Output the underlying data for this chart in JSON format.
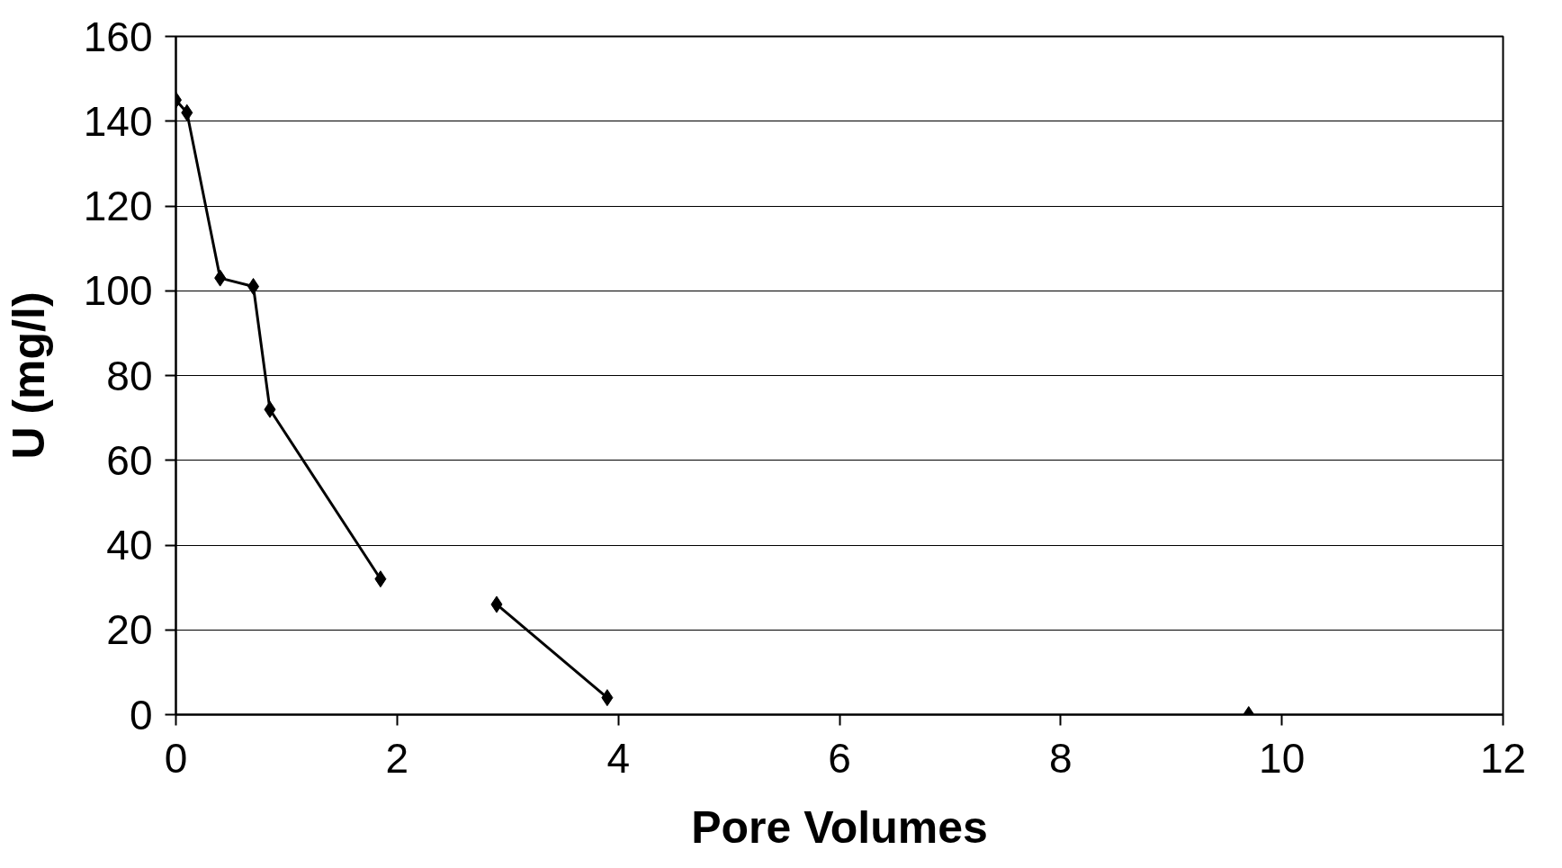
{
  "chart_data": {
    "type": "line",
    "xlabel": "Pore Volumes",
    "ylabel": "U (mg/l)",
    "series": [
      {
        "color": "#000000",
        "x": [
          0,
          0.1,
          0.4,
          0.7,
          0.85,
          1.85
        ],
        "values": [
          145,
          142,
          103,
          101,
          72,
          32
        ]
      },
      {
        "color": "#000000",
        "x": [
          2.9,
          3.9
        ],
        "values": [
          26,
          4
        ]
      },
      {
        "color": "#000000",
        "x": [
          9.7
        ],
        "values": [
          0
        ]
      }
    ],
    "xlim": [
      0,
      12
    ],
    "xticks": [
      0,
      2,
      4,
      6,
      8,
      10,
      12
    ],
    "ylim": [
      0,
      160
    ],
    "yticks": [
      0,
      20,
      40,
      60,
      80,
      100,
      120,
      140,
      160
    ],
    "grid": "y",
    "marker": "diamond",
    "line_style": "solid"
  }
}
